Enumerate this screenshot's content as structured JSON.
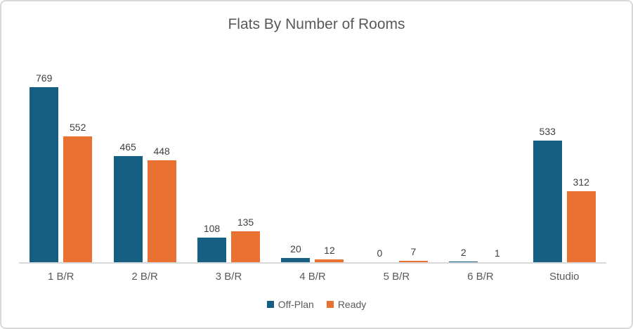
{
  "chart_data": {
    "type": "bar",
    "title": "Flats By Number of Rooms",
    "categories": [
      "1 B/R",
      "2 B/R",
      "3 B/R",
      "4 B/R",
      "5 B/R",
      "6 B/R",
      "Studio"
    ],
    "series": [
      {
        "name": "Off-Plan",
        "color": "#156082",
        "values": [
          769,
          465,
          108,
          20,
          0,
          2,
          533
        ]
      },
      {
        "name": "Ready",
        "color": "#E97132",
        "values": [
          552,
          448,
          135,
          12,
          7,
          1,
          312
        ]
      }
    ],
    "data_labels": true,
    "grid": false,
    "legend_position": "bottom",
    "y_axis_visible": false,
    "axis_line_color": "#D9D9D9",
    "title_color": "#595959",
    "label_color": "#595959",
    "value_label_color": "#404040",
    "background": "#FFFFFF",
    "approx_value_axis_max": 900
  }
}
